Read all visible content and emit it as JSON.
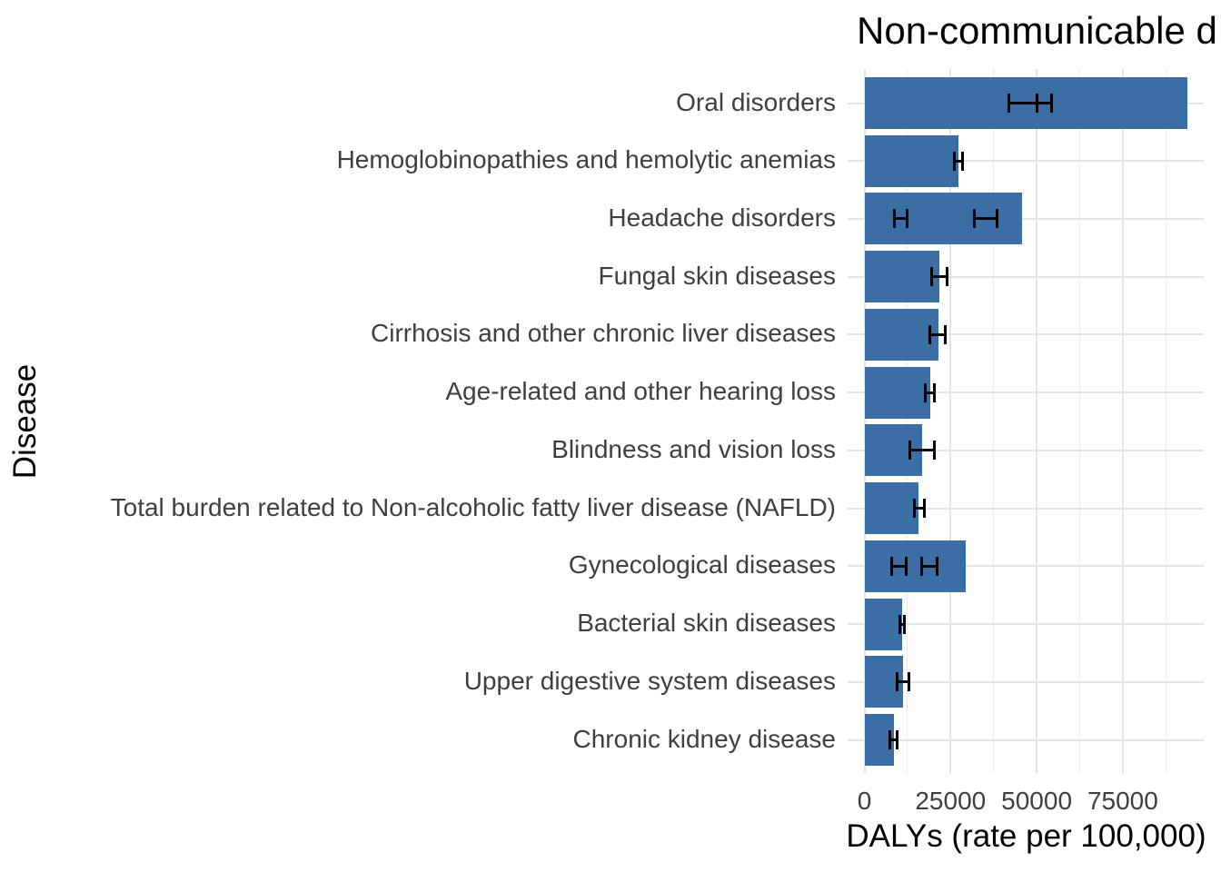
{
  "chart_data": {
    "type": "bar",
    "orientation": "horizontal",
    "title": "Non-communicable d",
    "xlabel": "DALYs (rate per 100,000)",
    "ylabel": "Disease",
    "xlim": [
      -4900,
      98500
    ],
    "x_major_ticks": [
      0,
      25000,
      50000,
      75000
    ],
    "x_tick_labels": [
      "0",
      "25000",
      "50000",
      "75000"
    ],
    "x_minor_ticks": [
      12500,
      37500,
      62500,
      87500
    ],
    "grid": "on",
    "legend": "none",
    "categories": [
      "Oral disorders",
      "Hemoglobinopathies and hemolytic anemias",
      "Headache disorders",
      "Fungal skin diseases",
      "Cirrhosis and other chronic liver diseases",
      "Age-related and other hearing loss",
      "Blindness and vision loss",
      "Total burden related to Non-alcoholic fatty liver disease (NAFLD)",
      "Gynecological diseases",
      "Bacterial skin diseases",
      "Upper digestive system diseases",
      "Chronic kidney disease"
    ],
    "values": [
      93700,
      27300,
      45700,
      21800,
      21500,
      19100,
      16700,
      15700,
      29400,
      10900,
      11200,
      8600
    ],
    "error_bars": [
      [
        [
          41800,
          54200
        ],
        [
          50000,
          54200
        ]
      ],
      [
        [
          26000,
          28600
        ]
      ],
      [
        [
          8800,
          12500
        ],
        [
          32000,
          38400
        ]
      ],
      [
        [
          19400,
          24100
        ]
      ],
      [
        [
          19100,
          23600
        ]
      ],
      [
        [
          17800,
          20400
        ]
      ],
      [
        [
          13100,
          20400
        ]
      ],
      [
        [
          14600,
          17500
        ]
      ],
      [
        [
          7800,
          12000
        ],
        [
          16700,
          21200
        ]
      ],
      [
        [
          10400,
          11700
        ]
      ],
      [
        [
          9600,
          12800
        ]
      ],
      [
        [
          7300,
          9400
        ]
      ]
    ],
    "colors": {
      "bar_fill": "#3b6ea5",
      "error_bar": "#000000",
      "grid_major": "#e4e4e4",
      "grid_minor": "#ededed",
      "axis_text": "#3f3f3f",
      "title_text": "#000000",
      "background": "#ffffff"
    }
  }
}
